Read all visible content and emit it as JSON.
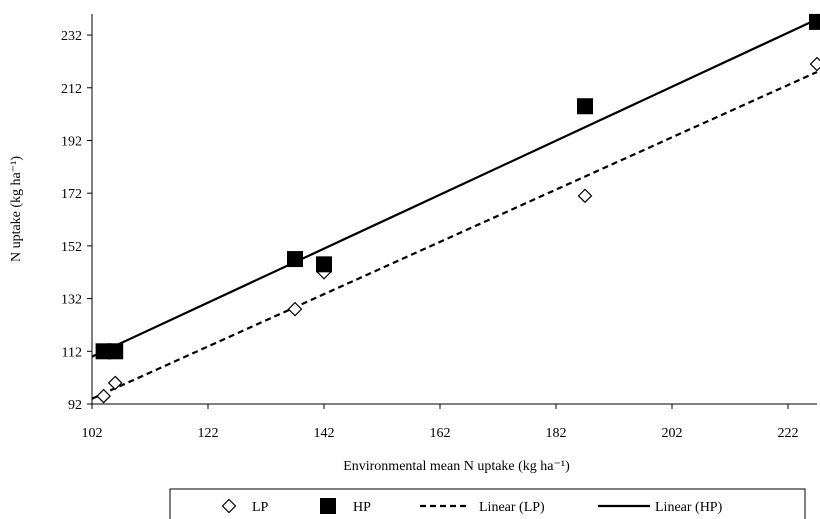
{
  "chart_data": {
    "type": "scatter",
    "xlabel": "Environmental mean N uptake (kg ha⁻¹)",
    "ylabel": "N uptake (kg ha⁻¹)",
    "xlim": [
      102,
      227
    ],
    "ylim": [
      92,
      240
    ],
    "xticks": [
      102,
      122,
      142,
      162,
      182,
      202,
      222
    ],
    "yticks": [
      92,
      112,
      132,
      152,
      172,
      192,
      212,
      232
    ],
    "grid": false,
    "legend_position": "bottom",
    "series": [
      {
        "name": "LP",
        "marker": "open-diamond",
        "color": "#000000",
        "points": [
          [
            104,
            95
          ],
          [
            106,
            100
          ],
          [
            137,
            128
          ],
          [
            142,
            142
          ],
          [
            187,
            171
          ],
          [
            227,
            221
          ]
        ]
      },
      {
        "name": "HP",
        "marker": "filled-square",
        "color": "#000000",
        "points": [
          [
            104,
            112
          ],
          [
            106,
            112
          ],
          [
            137,
            147
          ],
          [
            142,
            145
          ],
          [
            187,
            205
          ],
          [
            227,
            237
          ]
        ]
      }
    ],
    "trendlines": [
      {
        "name": "Linear (LP)",
        "style": "dashed",
        "color": "#000000",
        "from": [
          102,
          94
        ],
        "to": [
          227,
          218
        ]
      },
      {
        "name": "Linear (HP)",
        "style": "solid",
        "color": "#000000",
        "from": [
          102,
          110
        ],
        "to": [
          227,
          238
        ]
      }
    ]
  }
}
